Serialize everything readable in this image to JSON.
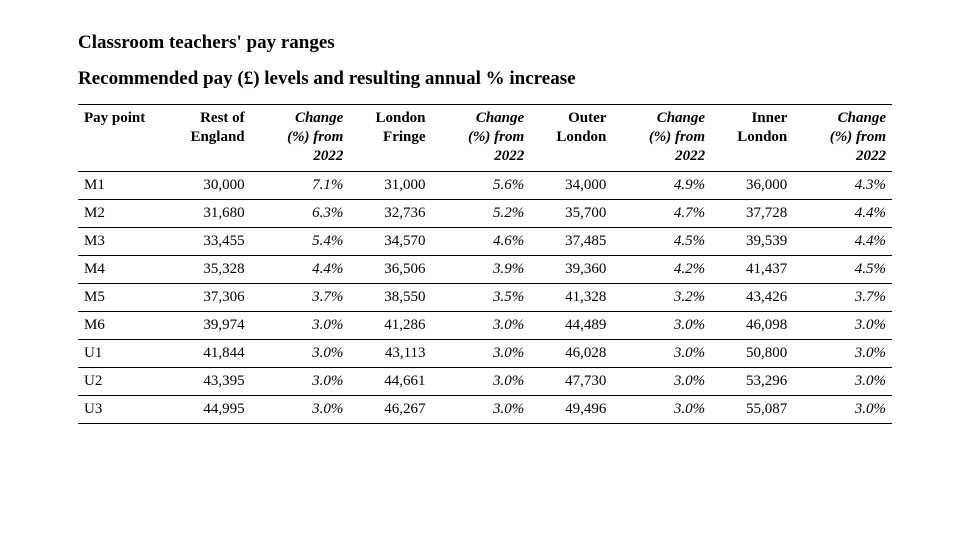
{
  "titles": {
    "main": "Classroom teachers' pay ranges",
    "sub": "Recommended pay (£) levels and resulting annual % increase"
  },
  "table": {
    "type": "table",
    "text_color": "#000000",
    "background_color": "#ffffff",
    "rule_color": "#000000",
    "header_fontsize_pt": 15,
    "body_fontsize_pt": 15,
    "columns": [
      {
        "key": "pay_point",
        "lines": [
          "Pay point"
        ],
        "align": "left",
        "italic": false,
        "width_pct": 11
      },
      {
        "key": "rest_england",
        "lines": [
          "Rest of",
          "England"
        ],
        "align": "right",
        "italic": false,
        "width_pct": 10
      },
      {
        "key": "rest_england_chg",
        "lines": [
          "Change",
          "(%) from",
          "2022"
        ],
        "align": "right",
        "italic": true,
        "width_pct": 12
      },
      {
        "key": "london_fringe",
        "lines": [
          "London",
          "Fringe"
        ],
        "align": "right",
        "italic": false,
        "width_pct": 10
      },
      {
        "key": "london_fringe_chg",
        "lines": [
          "Change",
          "(%) from",
          "2022"
        ],
        "align": "right",
        "italic": true,
        "width_pct": 12
      },
      {
        "key": "outer_london",
        "lines": [
          "Outer",
          "London"
        ],
        "align": "right",
        "italic": false,
        "width_pct": 10
      },
      {
        "key": "outer_london_chg",
        "lines": [
          "Change",
          "(%) from",
          "2022"
        ],
        "align": "right",
        "italic": true,
        "width_pct": 12
      },
      {
        "key": "inner_london",
        "lines": [
          "Inner",
          "London"
        ],
        "align": "right",
        "italic": false,
        "width_pct": 10
      },
      {
        "key": "inner_london_chg",
        "lines": [
          "Change",
          "(%) from",
          "2022"
        ],
        "align": "right",
        "italic": true,
        "width_pct": 12
      }
    ],
    "rows": [
      {
        "pay_point": "M1",
        "rest_england": "30,000",
        "rest_england_chg": "7.1%",
        "london_fringe": "31,000",
        "london_fringe_chg": "5.6%",
        "outer_london": "34,000",
        "outer_london_chg": "4.9%",
        "inner_london": "36,000",
        "inner_london_chg": "4.3%"
      },
      {
        "pay_point": "M2",
        "rest_england": "31,680",
        "rest_england_chg": "6.3%",
        "london_fringe": "32,736",
        "london_fringe_chg": "5.2%",
        "outer_london": "35,700",
        "outer_london_chg": "4.7%",
        "inner_london": "37,728",
        "inner_london_chg": "4.4%"
      },
      {
        "pay_point": "M3",
        "rest_england": "33,455",
        "rest_england_chg": "5.4%",
        "london_fringe": "34,570",
        "london_fringe_chg": "4.6%",
        "outer_london": "37,485",
        "outer_london_chg": "4.5%",
        "inner_london": "39,539",
        "inner_london_chg": "4.4%"
      },
      {
        "pay_point": "M4",
        "rest_england": "35,328",
        "rest_england_chg": "4.4%",
        "london_fringe": "36,506",
        "london_fringe_chg": "3.9%",
        "outer_london": "39,360",
        "outer_london_chg": "4.2%",
        "inner_london": "41,437",
        "inner_london_chg": "4.5%"
      },
      {
        "pay_point": "M5",
        "rest_england": "37,306",
        "rest_england_chg": "3.7%",
        "london_fringe": "38,550",
        "london_fringe_chg": "3.5%",
        "outer_london": "41,328",
        "outer_london_chg": "3.2%",
        "inner_london": "43,426",
        "inner_london_chg": "3.7%"
      },
      {
        "pay_point": "M6",
        "rest_england": "39,974",
        "rest_england_chg": "3.0%",
        "london_fringe": "41,286",
        "london_fringe_chg": "3.0%",
        "outer_london": "44,489",
        "outer_london_chg": "3.0%",
        "inner_london": "46,098",
        "inner_london_chg": "3.0%"
      },
      {
        "pay_point": "U1",
        "rest_england": "41,844",
        "rest_england_chg": "3.0%",
        "london_fringe": "43,113",
        "london_fringe_chg": "3.0%",
        "outer_london": "46,028",
        "outer_london_chg": "3.0%",
        "inner_london": "50,800",
        "inner_london_chg": "3.0%"
      },
      {
        "pay_point": "U2",
        "rest_england": "43,395",
        "rest_england_chg": "3.0%",
        "london_fringe": "44,661",
        "london_fringe_chg": "3.0%",
        "outer_london": "47,730",
        "outer_london_chg": "3.0%",
        "inner_london": "53,296",
        "inner_london_chg": "3.0%"
      },
      {
        "pay_point": "U3",
        "rest_england": "44,995",
        "rest_england_chg": "3.0%",
        "london_fringe": "46,267",
        "london_fringe_chg": "3.0%",
        "outer_london": "49,496",
        "outer_london_chg": "3.0%",
        "inner_london": "55,087",
        "inner_london_chg": "3.0%"
      }
    ]
  }
}
